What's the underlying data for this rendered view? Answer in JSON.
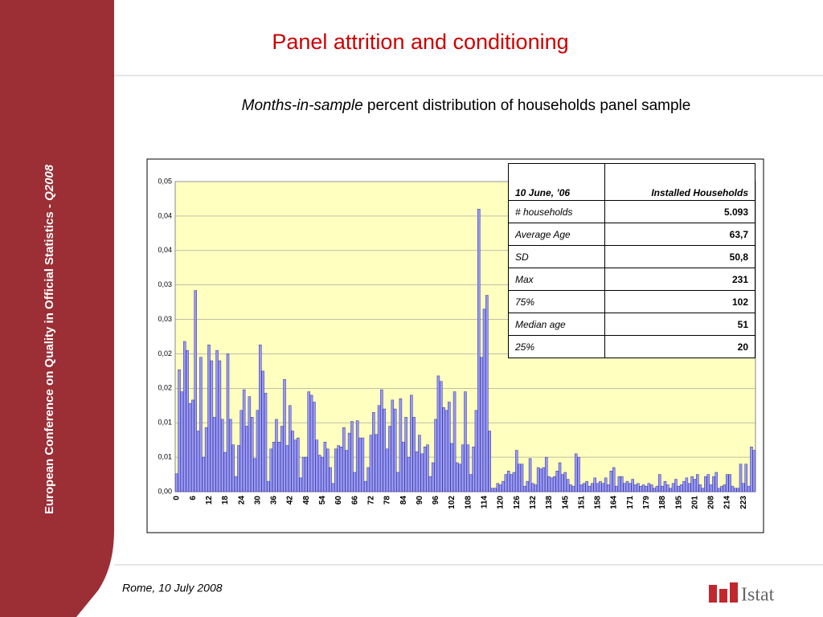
{
  "slide": {
    "title": "Panel attrition and conditioning",
    "subtitle_italic": "Months-in-sample",
    "subtitle": "percent distribution of households panel sample",
    "sidebar": "European Conference on Quality in Official Statistics  - ",
    "sidebar_italic": "Q2008",
    "footer": "Rome, 10 July 2008",
    "logo": "Istat"
  },
  "chart_data": {
    "type": "bar",
    "color": "#9999ff",
    "grid": true,
    "ylim": [
      0,
      0.045
    ],
    "yticks": [
      {
        "value": 0,
        "label": "0,00"
      },
      {
        "value": 0.005,
        "label": "0,01"
      },
      {
        "value": 0.01,
        "label": "0,01"
      },
      {
        "value": 0.015,
        "label": "0,02"
      },
      {
        "value": 0.02,
        "label": "0,02"
      },
      {
        "value": 0.025,
        "label": "0,03"
      },
      {
        "value": 0.03,
        "label": "0,03"
      },
      {
        "value": 0.035,
        "label": "0,04"
      },
      {
        "value": 0.04,
        "label": "0,04"
      },
      {
        "value": 0.045,
        "label": "0,05"
      }
    ],
    "categories": [
      "0",
      null,
      null,
      null,
      null,
      null,
      "6",
      null,
      null,
      null,
      null,
      null,
      "12",
      null,
      null,
      null,
      null,
      null,
      "18",
      null,
      null,
      null,
      null,
      null,
      "24",
      null,
      null,
      null,
      null,
      null,
      "30",
      null,
      null,
      null,
      null,
      null,
      "36",
      null,
      null,
      null,
      null,
      null,
      "42",
      null,
      null,
      null,
      null,
      null,
      "48",
      null,
      null,
      null,
      null,
      null,
      "54",
      null,
      null,
      null,
      null,
      null,
      "60",
      null,
      null,
      null,
      null,
      null,
      "66",
      null,
      null,
      null,
      null,
      null,
      "72",
      null,
      null,
      null,
      null,
      null,
      "78",
      null,
      null,
      null,
      null,
      null,
      "84",
      null,
      null,
      null,
      null,
      null,
      "90",
      null,
      null,
      null,
      null,
      null,
      "96",
      null,
      null,
      null,
      null,
      null,
      "102",
      null,
      null,
      null,
      null,
      null,
      "108",
      null,
      null,
      null,
      null,
      null,
      "114",
      null,
      null,
      null,
      null,
      null,
      "120",
      null,
      null,
      null,
      null,
      null,
      "126",
      null,
      null,
      null,
      null,
      null,
      "132",
      null,
      null,
      null,
      null,
      null,
      "138",
      null,
      null,
      null,
      null,
      null,
      "145",
      null,
      null,
      null,
      null,
      null,
      "151",
      null,
      null,
      null,
      null,
      null,
      "158",
      null,
      null,
      null,
      null,
      null,
      "164",
      null,
      null,
      null,
      null,
      null,
      "171",
      null,
      null,
      null,
      null,
      null,
      "179",
      null,
      null,
      null,
      null,
      null,
      "188",
      null,
      null,
      null,
      null,
      null,
      "195",
      null,
      null,
      null,
      null,
      null,
      "201",
      null,
      null,
      null,
      null,
      null,
      "208",
      null,
      null,
      null,
      null,
      null,
      "214",
      null,
      null,
      null,
      null,
      null,
      "223",
      null,
      null,
      null,
      null
    ],
    "values": [
      0.0026,
      0.0177,
      0.0145,
      0.0218,
      0.0205,
      0.0128,
      0.0133,
      0.0292,
      0.0088,
      0.0195,
      0.005,
      0.0093,
      0.0213,
      0.019,
      0.0108,
      0.0205,
      0.019,
      0.0105,
      0.0057,
      0.02,
      0.0105,
      0.0068,
      0.0022,
      0.0067,
      0.0118,
      0.0148,
      0.0095,
      0.0138,
      0.0108,
      0.0048,
      0.0118,
      0.0213,
      0.0175,
      0.0143,
      0.0015,
      0.0062,
      0.0072,
      0.0105,
      0.0072,
      0.0095,
      0.0163,
      0.0067,
      0.0125,
      0.0088,
      0.0075,
      0.0078,
      0.002,
      0.005,
      0.005,
      0.0145,
      0.014,
      0.013,
      0.0075,
      0.0053,
      0.005,
      0.0072,
      0.0062,
      0.0035,
      0.0012,
      0.0062,
      0.0067,
      0.0065,
      0.0093,
      0.006,
      0.0085,
      0.0102,
      0.0028,
      0.0103,
      0.0078,
      0.0078,
      0.0015,
      0.0035,
      0.0082,
      0.0115,
      0.0083,
      0.0125,
      0.0148,
      0.012,
      0.0062,
      0.0095,
      0.0133,
      0.012,
      0.0028,
      0.0135,
      0.0072,
      0.0108,
      0.005,
      0.014,
      0.0108,
      0.0058,
      0.0082,
      0.0055,
      0.0065,
      0.0068,
      0.0022,
      0.0042,
      0.0105,
      0.0168,
      0.016,
      0.0122,
      0.0118,
      0.013,
      0.007,
      0.0145,
      0.0042,
      0.004,
      0.0068,
      0.0145,
      0.0068,
      0.0025,
      0.0065,
      0.0118,
      0.041,
      0.0195,
      0.0265,
      0.0285,
      0.0088,
      0.0005,
      0.0005,
      0.0012,
      0.001,
      0.0015,
      0.0025,
      0.003,
      0.0025,
      0.0028,
      0.006,
      0.004,
      0.004,
      0.0008,
      0.0015,
      0.0048,
      0.0012,
      0.001,
      0.0035,
      0.0033,
      0.0035,
      0.005,
      0.0022,
      0.002,
      0.0022,
      0.003,
      0.0042,
      0.0025,
      0.0028,
      0.0018,
      0.001,
      0.0008,
      0.0055,
      0.005,
      0.001,
      0.0012,
      0.0015,
      0.0008,
      0.0012,
      0.002,
      0.0012,
      0.0015,
      0.0012,
      0.002,
      0.001,
      0.003,
      0.0035,
      0.0008,
      0.0022,
      0.0022,
      0.0012,
      0.0015,
      0.0012,
      0.0018,
      0.001,
      0.0012,
      0.0008,
      0.001,
      0.0008,
      0.0012,
      0.001,
      0.0005,
      0.0008,
      0.0025,
      0.0008,
      0.0015,
      0.001,
      0.0005,
      0.0012,
      0.0018,
      0.0008,
      0.001,
      0.0015,
      0.002,
      0.0012,
      0.0022,
      0.0018,
      0.0025,
      0.001,
      0.0005,
      0.0022,
      0.0025,
      0.001,
      0.0022,
      0.0028,
      0.0005,
      0.0008,
      0.001,
      0.0025,
      0.0025,
      0.0008,
      0.0005,
      0.0005,
      0.004,
      0.0012,
      0.004,
      0.0008,
      0.0065,
      0.006
    ]
  },
  "table": {
    "header": [
      "10 June, ’06",
      "Installed Households"
    ],
    "rows": [
      [
        "# households",
        "5.093"
      ],
      [
        "Average Age",
        "63,7"
      ],
      [
        "SD",
        "50,8"
      ],
      [
        "Max",
        "231"
      ],
      [
        "75%",
        "102"
      ],
      [
        "Median age",
        "51"
      ],
      [
        "25%",
        "20"
      ]
    ]
  }
}
